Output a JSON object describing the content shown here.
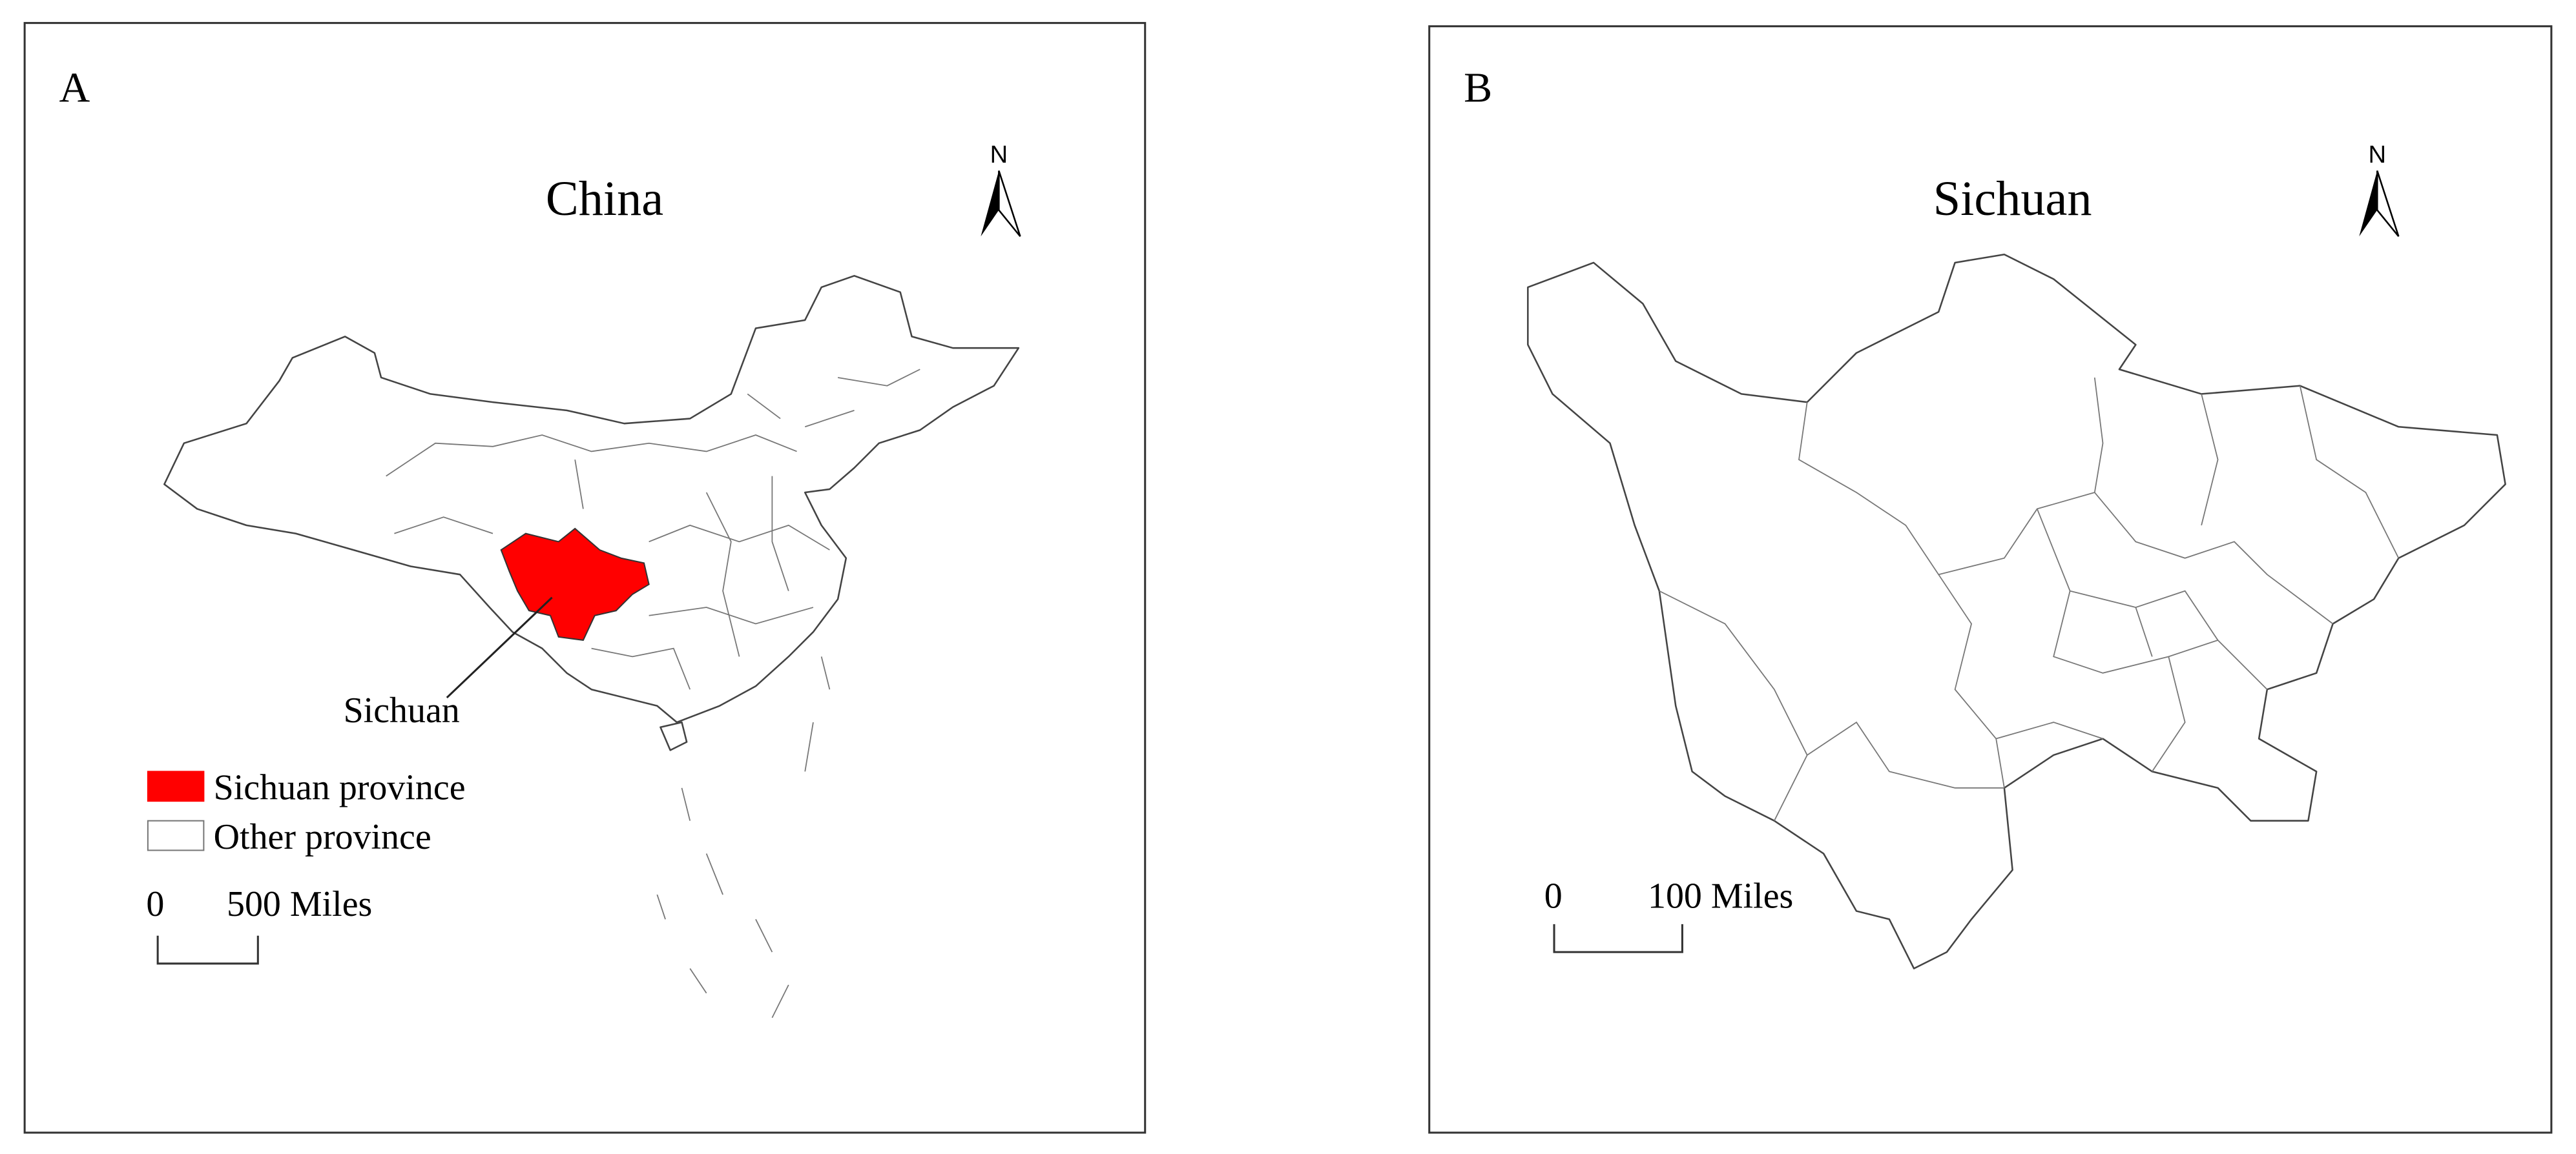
{
  "panels": [
    {
      "label": "A",
      "title": "China",
      "north": "N",
      "callout": "Sichuan",
      "legend": [
        {
          "label": "Sichuan province",
          "color": "#ff0000"
        },
        {
          "label": "Other province",
          "color": "#ffffff"
        }
      ],
      "scale": {
        "start": "0",
        "end": "500 Miles"
      }
    },
    {
      "label": "B",
      "title": "Sichuan",
      "north": "N",
      "scale": {
        "start": "0",
        "end": "100 Miles"
      }
    }
  ]
}
